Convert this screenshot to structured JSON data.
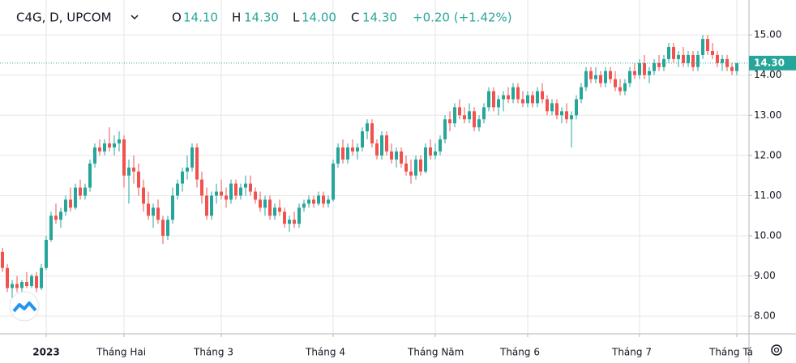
{
  "chart_data": {
    "type": "candlestick",
    "header": {
      "symbol": "C4G, D, UPCOM",
      "open_label": "O",
      "open": "14.10",
      "high_label": "H",
      "high": "14.30",
      "low_label": "L",
      "low": "14.00",
      "close_label": "C",
      "close": "14.30",
      "change": "+0.20 (+1.42%)"
    },
    "up_color": "#26a69a",
    "down_color": "#ef5350",
    "ylim": [
      7.56,
      15.87
    ],
    "yticks": [
      {
        "value": 8,
        "label": "8.00"
      },
      {
        "value": 9,
        "label": "9.00"
      },
      {
        "value": 10,
        "label": "10.00"
      },
      {
        "value": 11,
        "label": "11.00"
      },
      {
        "value": 12,
        "label": "12.00"
      },
      {
        "value": 13,
        "label": "13.00"
      },
      {
        "value": 14,
        "label": "14.00"
      },
      {
        "value": 15,
        "label": "15.00"
      }
    ],
    "xticks": [
      {
        "value": 9,
        "label": "2023"
      },
      {
        "value": 25,
        "label": "Tháng Hai"
      },
      {
        "value": 45,
        "label": "Tháng 3"
      },
      {
        "value": 68,
        "label": "Tháng 4"
      },
      {
        "value": 89,
        "label": "Tháng Năm"
      },
      {
        "value": 108,
        "label": "Tháng 6"
      },
      {
        "value": 131,
        "label": "Tháng 7"
      },
      {
        "value": 151,
        "label": "Tháng Tá"
      }
    ],
    "last_price": {
      "value": 14.3,
      "label": "14.30"
    },
    "grid": true,
    "candles": [
      [
        9.6,
        9.7,
        9.1,
        9.2
      ],
      [
        9.2,
        9.3,
        8.6,
        8.7
      ],
      [
        8.7,
        8.9,
        8.4,
        8.8
      ],
      [
        8.8,
        9.0,
        8.6,
        8.7
      ],
      [
        8.7,
        8.9,
        8.6,
        8.85
      ],
      [
        8.85,
        9.1,
        8.7,
        8.75
      ],
      [
        8.75,
        9.05,
        8.7,
        9.0
      ],
      [
        9.0,
        9.1,
        8.6,
        8.7
      ],
      [
        8.7,
        9.3,
        8.65,
        9.2
      ],
      [
        9.2,
        10.0,
        9.15,
        9.9
      ],
      [
        9.9,
        10.6,
        9.85,
        10.5
      ],
      [
        10.5,
        10.8,
        10.3,
        10.4
      ],
      [
        10.4,
        10.7,
        10.2,
        10.6
      ],
      [
        10.6,
        11.0,
        10.5,
        10.9
      ],
      [
        10.9,
        11.2,
        10.6,
        10.7
      ],
      [
        10.7,
        11.3,
        10.65,
        11.2
      ],
      [
        11.2,
        11.4,
        10.9,
        11.0
      ],
      [
        11.0,
        11.3,
        10.9,
        11.2
      ],
      [
        11.2,
        11.9,
        11.1,
        11.8
      ],
      [
        11.8,
        12.3,
        11.7,
        12.2
      ],
      [
        12.2,
        12.4,
        12.0,
        12.1
      ],
      [
        12.1,
        12.4,
        12.0,
        12.3
      ],
      [
        12.3,
        12.7,
        12.1,
        12.2
      ],
      [
        12.2,
        12.5,
        12.0,
        12.3
      ],
      [
        12.3,
        12.6,
        12.1,
        12.4
      ],
      [
        12.4,
        12.5,
        11.2,
        11.5
      ],
      [
        11.5,
        11.9,
        10.8,
        11.7
      ],
      [
        11.7,
        12.0,
        11.3,
        11.6
      ],
      [
        11.6,
        11.8,
        11.0,
        11.2
      ],
      [
        11.2,
        11.4,
        10.6,
        10.8
      ],
      [
        10.8,
        11.1,
        10.4,
        10.5
      ],
      [
        10.5,
        10.8,
        10.2,
        10.7
      ],
      [
        10.7,
        10.9,
        10.3,
        10.4
      ],
      [
        10.4,
        10.5,
        9.8,
        10.0
      ],
      [
        10.0,
        10.5,
        9.9,
        10.4
      ],
      [
        10.4,
        11.2,
        10.3,
        11.0
      ],
      [
        11.0,
        11.4,
        10.9,
        11.3
      ],
      [
        11.3,
        11.7,
        11.1,
        11.6
      ],
      [
        11.6,
        12.0,
        11.4,
        11.7
      ],
      [
        11.7,
        12.3,
        11.6,
        12.2
      ],
      [
        12.2,
        12.3,
        11.2,
        11.4
      ],
      [
        11.4,
        11.6,
        10.8,
        11.0
      ],
      [
        11.0,
        11.2,
        10.4,
        10.5
      ],
      [
        10.5,
        11.1,
        10.4,
        11.0
      ],
      [
        11.0,
        11.3,
        10.8,
        11.1
      ],
      [
        11.1,
        11.4,
        10.9,
        11.0
      ],
      [
        11.0,
        11.2,
        10.7,
        10.9
      ],
      [
        10.9,
        11.4,
        10.8,
        11.3
      ],
      [
        11.3,
        11.4,
        10.9,
        11.0
      ],
      [
        11.0,
        11.3,
        10.9,
        11.2
      ],
      [
        11.2,
        11.5,
        11.0,
        11.3
      ],
      [
        11.3,
        11.5,
        11.0,
        11.1
      ],
      [
        11.1,
        11.2,
        10.8,
        10.9
      ],
      [
        10.9,
        11.1,
        10.6,
        10.7
      ],
      [
        10.7,
        11.0,
        10.5,
        10.9
      ],
      [
        10.9,
        11.0,
        10.4,
        10.5
      ],
      [
        10.5,
        10.8,
        10.4,
        10.7
      ],
      [
        10.7,
        10.9,
        10.5,
        10.6
      ],
      [
        10.6,
        10.7,
        10.2,
        10.3
      ],
      [
        10.3,
        10.5,
        10.1,
        10.4
      ],
      [
        10.4,
        10.6,
        10.2,
        10.3
      ],
      [
        10.3,
        10.8,
        10.2,
        10.7
      ],
      [
        10.7,
        10.9,
        10.6,
        10.8
      ],
      [
        10.8,
        11.0,
        10.7,
        10.9
      ],
      [
        10.9,
        11.0,
        10.7,
        10.8
      ],
      [
        10.8,
        11.1,
        10.75,
        11.0
      ],
      [
        11.0,
        11.1,
        10.7,
        10.8
      ],
      [
        10.8,
        11.0,
        10.7,
        10.9
      ],
      [
        10.9,
        11.9,
        10.85,
        11.8
      ],
      [
        11.8,
        12.3,
        11.7,
        12.2
      ],
      [
        12.2,
        12.4,
        11.8,
        11.9
      ],
      [
        11.9,
        12.3,
        11.8,
        12.2
      ],
      [
        12.2,
        12.4,
        12.0,
        12.1
      ],
      [
        12.1,
        12.3,
        11.9,
        12.2
      ],
      [
        12.2,
        12.7,
        12.1,
        12.6
      ],
      [
        12.6,
        12.9,
        12.4,
        12.8
      ],
      [
        12.8,
        12.9,
        12.2,
        12.3
      ],
      [
        12.3,
        12.4,
        11.9,
        12.0
      ],
      [
        12.0,
        12.6,
        11.9,
        12.5
      ],
      [
        12.5,
        12.6,
        12.0,
        12.1
      ],
      [
        12.1,
        12.3,
        11.8,
        11.9
      ],
      [
        11.9,
        12.2,
        11.7,
        12.1
      ],
      [
        12.1,
        12.2,
        11.7,
        11.8
      ],
      [
        11.8,
        12.0,
        11.5,
        11.6
      ],
      [
        11.6,
        11.9,
        11.3,
        11.5
      ],
      [
        11.5,
        12.0,
        11.4,
        11.9
      ],
      [
        11.9,
        12.0,
        11.5,
        11.6
      ],
      [
        11.6,
        12.3,
        11.55,
        12.2
      ],
      [
        12.2,
        12.4,
        11.9,
        12.0
      ],
      [
        12.0,
        12.3,
        11.9,
        12.1
      ],
      [
        12.1,
        12.5,
        12.0,
        12.4
      ],
      [
        12.4,
        13.0,
        12.3,
        12.9
      ],
      [
        12.9,
        13.1,
        12.6,
        12.8
      ],
      [
        12.8,
        13.3,
        12.7,
        13.2
      ],
      [
        13.2,
        13.4,
        12.9,
        13.0
      ],
      [
        13.0,
        13.2,
        12.8,
        12.9
      ],
      [
        12.9,
        13.3,
        12.8,
        13.1
      ],
      [
        13.1,
        13.2,
        12.6,
        12.7
      ],
      [
        12.7,
        13.0,
        12.6,
        12.9
      ],
      [
        12.9,
        13.3,
        12.8,
        13.2
      ],
      [
        13.2,
        13.7,
        13.1,
        13.6
      ],
      [
        13.6,
        13.7,
        13.1,
        13.2
      ],
      [
        13.2,
        13.5,
        13.0,
        13.4
      ],
      [
        13.4,
        13.6,
        13.1,
        13.5
      ],
      [
        13.5,
        13.7,
        13.3,
        13.4
      ],
      [
        13.4,
        13.8,
        13.3,
        13.7
      ],
      [
        13.7,
        13.8,
        13.3,
        13.4
      ],
      [
        13.4,
        13.6,
        13.2,
        13.3
      ],
      [
        13.3,
        13.6,
        13.2,
        13.5
      ],
      [
        13.5,
        13.6,
        13.2,
        13.3
      ],
      [
        13.3,
        13.7,
        13.2,
        13.6
      ],
      [
        13.6,
        13.8,
        13.3,
        13.4
      ],
      [
        13.4,
        13.5,
        13.0,
        13.1
      ],
      [
        13.1,
        13.4,
        13.0,
        13.3
      ],
      [
        13.3,
        13.4,
        12.9,
        13.0
      ],
      [
        13.0,
        13.2,
        12.8,
        13.1
      ],
      [
        13.1,
        13.3,
        12.8,
        12.9
      ],
      [
        12.9,
        13.1,
        12.2,
        13.0
      ],
      [
        13.0,
        13.5,
        12.9,
        13.4
      ],
      [
        13.4,
        13.8,
        13.3,
        13.7
      ],
      [
        13.7,
        14.2,
        13.6,
        14.1
      ],
      [
        14.1,
        14.2,
        13.8,
        13.9
      ],
      [
        13.9,
        14.2,
        13.8,
        14.0
      ],
      [
        14.0,
        14.1,
        13.7,
        13.8
      ],
      [
        13.8,
        14.2,
        13.7,
        14.1
      ],
      [
        14.1,
        14.2,
        13.8,
        13.9
      ],
      [
        13.9,
        14.1,
        13.6,
        13.7
      ],
      [
        13.7,
        13.9,
        13.5,
        13.6
      ],
      [
        13.6,
        13.9,
        13.5,
        13.8
      ],
      [
        13.8,
        14.2,
        13.7,
        14.1
      ],
      [
        14.1,
        14.3,
        13.9,
        14.0
      ],
      [
        14.0,
        14.4,
        13.9,
        14.3
      ],
      [
        14.3,
        14.5,
        13.9,
        14.0
      ],
      [
        14.0,
        14.2,
        13.8,
        14.1
      ],
      [
        14.1,
        14.4,
        14.0,
        14.3
      ],
      [
        14.3,
        14.5,
        14.1,
        14.2
      ],
      [
        14.2,
        14.5,
        14.1,
        14.4
      ],
      [
        14.4,
        14.8,
        14.3,
        14.7
      ],
      [
        14.7,
        14.8,
        14.3,
        14.4
      ],
      [
        14.4,
        14.6,
        14.2,
        14.5
      ],
      [
        14.5,
        14.7,
        14.2,
        14.3
      ],
      [
        14.3,
        14.6,
        14.2,
        14.5
      ],
      [
        14.5,
        14.6,
        14.1,
        14.2
      ],
      [
        14.2,
        14.6,
        14.1,
        14.5
      ],
      [
        14.5,
        15.0,
        14.4,
        14.9
      ],
      [
        14.9,
        15.0,
        14.5,
        14.6
      ],
      [
        14.6,
        14.8,
        14.4,
        14.5
      ],
      [
        14.5,
        14.6,
        14.2,
        14.3
      ],
      [
        14.3,
        14.5,
        14.1,
        14.4
      ],
      [
        14.4,
        14.5,
        14.1,
        14.2
      ],
      [
        14.2,
        14.3,
        14.0,
        14.1
      ],
      [
        14.1,
        14.3,
        14.0,
        14.3
      ]
    ]
  }
}
